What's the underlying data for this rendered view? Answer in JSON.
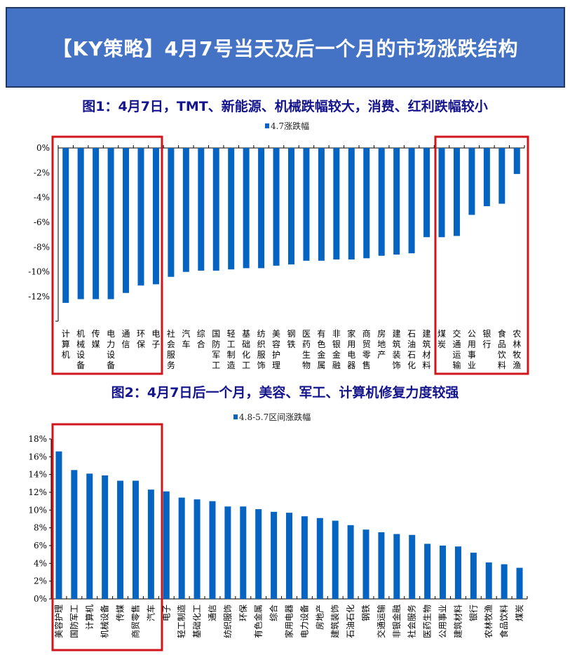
{
  "header": {
    "title": "【KY策略】4月7号当天及后一个月的市场涨跌结构"
  },
  "colors": {
    "bar": "#0563C1",
    "header_bg": "#4472C4",
    "highlight_box": "#D0161B",
    "subtitle": "#14148C"
  },
  "chart_data": [
    {
      "type": "bar",
      "title": "图1：4月7日，TMT、新能源、机械跌幅较大，消费、红利跌幅较小",
      "legend": [
        "4.7涨跌幅"
      ],
      "legend_placement": "top",
      "unit": "%",
      "ylim": [
        -14,
        0
      ],
      "yticks": [
        "0%",
        "-2%",
        "-4%",
        "-6%",
        "-8%",
        "-10%",
        "-12%"
      ],
      "grid": false,
      "categories": [
        "计算机",
        "机械设备",
        "传媒",
        "电力设备",
        "通信",
        "环保",
        "电子",
        "社会服务",
        "汽车",
        "综合",
        "国防军工",
        "轻工制造",
        "基础化工",
        "纺织服饰",
        "美容护理",
        "钢铁",
        "医药生物",
        "有色金属",
        "非银金融",
        "家用电器",
        "商贸零售",
        "房地产",
        "建筑装饰",
        "石油石化",
        "建筑材料",
        "煤炭",
        "交通运输",
        "公用事业",
        "银行",
        "食品饮料",
        "农林牧渔"
      ],
      "series": [
        {
          "name": "4.7涨跌幅",
          "values": [
            -12.5,
            -12.2,
            -12.2,
            -12.2,
            -11.7,
            -11.1,
            -11.0,
            -10.4,
            -10.0,
            -9.9,
            -9.9,
            -9.8,
            -9.7,
            -9.7,
            -9.5,
            -9.4,
            -9.1,
            -9.1,
            -9.0,
            -9.0,
            -8.9,
            -8.7,
            -8.6,
            -8.5,
            -7.2,
            -7.2,
            -7.1,
            -5.4,
            -4.7,
            -4.5,
            -2.1
          ]
        }
      ],
      "highlighted_groups": [
        [
          "计算机",
          "机械设备",
          "传媒",
          "电力设备",
          "通信",
          "环保",
          "电子"
        ],
        [
          "煤炭",
          "交通运输",
          "公用事业",
          "银行",
          "食品饮料",
          "农林牧渔"
        ]
      ]
    },
    {
      "type": "bar",
      "title": "图2：4月7日后一个月，美容、军工、计算机修复力度较强",
      "legend": [
        "4.8-5.7区间涨跌幅"
      ],
      "legend_placement": "top",
      "unit": "%",
      "ylim": [
        0,
        18
      ],
      "yticks": [
        "0%",
        "2%",
        "4%",
        "6%",
        "8%",
        "10%",
        "12%",
        "14%",
        "16%",
        "18%"
      ],
      "grid": false,
      "categories": [
        "美容护理",
        "国防军工",
        "计算机",
        "机械设备",
        "传媒",
        "商贸零售",
        "汽车",
        "电子",
        "轻工制造",
        "基础化工",
        "通信",
        "纺织服饰",
        "环保",
        "有色金属",
        "综合",
        "家用电器",
        "电力设备",
        "房地产",
        "建筑装饰",
        "石油石化",
        "钢铁",
        "交通运输",
        "非银金融",
        "社会服务",
        "医药生物",
        "公用事业",
        "建筑材料",
        "银行",
        "农林牧渔",
        "食品饮料",
        "煤炭"
      ],
      "series": [
        {
          "name": "4.8-5.7区间涨跌幅",
          "values": [
            16.6,
            14.5,
            14.1,
            13.9,
            13.3,
            13.3,
            12.3,
            12.1,
            11.4,
            11.2,
            11.0,
            10.4,
            10.4,
            10.1,
            9.8,
            9.7,
            9.3,
            9.1,
            8.8,
            8.3,
            7.8,
            7.5,
            7.3,
            7.2,
            6.2,
            6.0,
            5.9,
            5.2,
            4.1,
            3.9,
            3.5
          ]
        }
      ],
      "highlighted_groups": [
        [
          "美容护理",
          "国防军工",
          "计算机",
          "机械设备",
          "传媒",
          "商贸零售",
          "汽车"
        ]
      ]
    }
  ]
}
